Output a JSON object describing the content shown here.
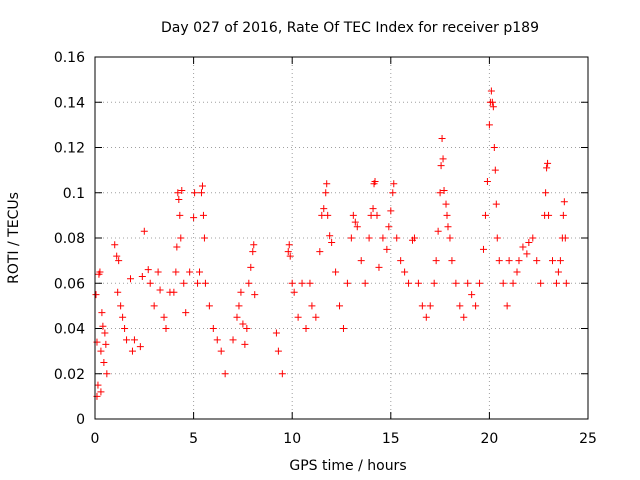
{
  "chart_data": {
    "type": "scatter",
    "title": "Day 027 of 2016, Rate Of TEC Index for receiver p189",
    "xlabel": "GPS time / hours",
    "ylabel": "ROTI / TECUs",
    "xlim": [
      0,
      25
    ],
    "ylim": [
      0,
      0.16
    ],
    "xticks": [
      "0",
      "5",
      "10",
      "15",
      "20",
      "25"
    ],
    "yticks": [
      "0",
      "0.02",
      "0.04",
      "0.06",
      "0.08",
      "0.1",
      "0.12",
      "0.14",
      "0.16"
    ],
    "grid": true,
    "marker": "+",
    "color": "#ff0000",
    "series": [
      {
        "points": [
          [
            0.05,
            0.055
          ],
          [
            0.1,
            0.034
          ],
          [
            0.15,
            0.015
          ],
          [
            0.2,
            0.064
          ],
          [
            0.25,
            0.065
          ],
          [
            0.35,
            0.047
          ],
          [
            0.4,
            0.041
          ],
          [
            0.5,
            0.038
          ],
          [
            0.3,
            0.03
          ],
          [
            0.45,
            0.025
          ],
          [
            0.55,
            0.033
          ],
          [
            0.6,
            0.02
          ],
          [
            0.1,
            0.01
          ],
          [
            0.3,
            0.012
          ],
          [
            1.0,
            0.077
          ],
          [
            1.1,
            0.072
          ],
          [
            1.2,
            0.07
          ],
          [
            1.15,
            0.056
          ],
          [
            1.3,
            0.05
          ],
          [
            1.4,
            0.045
          ],
          [
            1.5,
            0.04
          ],
          [
            1.6,
            0.035
          ],
          [
            1.8,
            0.062
          ],
          [
            1.9,
            0.03
          ],
          [
            2.0,
            0.035
          ],
          [
            2.3,
            0.032
          ],
          [
            2.4,
            0.063
          ],
          [
            2.5,
            0.083
          ],
          [
            2.7,
            0.066
          ],
          [
            2.8,
            0.06
          ],
          [
            3.0,
            0.05
          ],
          [
            3.2,
            0.065
          ],
          [
            3.3,
            0.057
          ],
          [
            3.5,
            0.045
          ],
          [
            3.6,
            0.04
          ],
          [
            3.8,
            0.056
          ],
          [
            4.0,
            0.056
          ],
          [
            4.1,
            0.065
          ],
          [
            4.15,
            0.076
          ],
          [
            4.2,
            0.1
          ],
          [
            4.25,
            0.097
          ],
          [
            4.3,
            0.09
          ],
          [
            4.35,
            0.08
          ],
          [
            4.4,
            0.101
          ],
          [
            4.5,
            0.06
          ],
          [
            4.6,
            0.047
          ],
          [
            4.8,
            0.065
          ],
          [
            5.0,
            0.089
          ],
          [
            5.05,
            0.1
          ],
          [
            5.2,
            0.06
          ],
          [
            5.3,
            0.065
          ],
          [
            5.4,
            0.1
          ],
          [
            5.45,
            0.103
          ],
          [
            5.5,
            0.09
          ],
          [
            5.55,
            0.08
          ],
          [
            5.6,
            0.06
          ],
          [
            5.8,
            0.05
          ],
          [
            6.0,
            0.04
          ],
          [
            6.2,
            0.035
          ],
          [
            6.4,
            0.03
          ],
          [
            6.6,
            0.02
          ],
          [
            7.0,
            0.035
          ],
          [
            7.2,
            0.045
          ],
          [
            7.3,
            0.05
          ],
          [
            7.4,
            0.056
          ],
          [
            7.5,
            0.042
          ],
          [
            7.6,
            0.033
          ],
          [
            7.7,
            0.04
          ],
          [
            7.8,
            0.06
          ],
          [
            7.9,
            0.067
          ],
          [
            8.0,
            0.074
          ],
          [
            8.05,
            0.077
          ],
          [
            8.1,
            0.055
          ],
          [
            9.2,
            0.038
          ],
          [
            9.3,
            0.03
          ],
          [
            9.5,
            0.02
          ],
          [
            9.8,
            0.074
          ],
          [
            9.85,
            0.077
          ],
          [
            9.9,
            0.072
          ],
          [
            10.0,
            0.06
          ],
          [
            10.1,
            0.056
          ],
          [
            10.3,
            0.045
          ],
          [
            10.5,
            0.06
          ],
          [
            10.7,
            0.04
          ],
          [
            10.9,
            0.06
          ],
          [
            11.0,
            0.05
          ],
          [
            11.2,
            0.045
          ],
          [
            11.4,
            0.074
          ],
          [
            11.5,
            0.09
          ],
          [
            11.6,
            0.093
          ],
          [
            11.7,
            0.1
          ],
          [
            11.75,
            0.104
          ],
          [
            11.8,
            0.09
          ],
          [
            11.9,
            0.081
          ],
          [
            12.0,
            0.078
          ],
          [
            12.2,
            0.065
          ],
          [
            12.4,
            0.05
          ],
          [
            12.6,
            0.04
          ],
          [
            12.8,
            0.06
          ],
          [
            13.0,
            0.08
          ],
          [
            13.1,
            0.09
          ],
          [
            13.2,
            0.087
          ],
          [
            13.3,
            0.085
          ],
          [
            13.5,
            0.07
          ],
          [
            13.7,
            0.06
          ],
          [
            13.9,
            0.08
          ],
          [
            14.0,
            0.09
          ],
          [
            14.1,
            0.093
          ],
          [
            14.15,
            0.104
          ],
          [
            14.2,
            0.105
          ],
          [
            14.3,
            0.09
          ],
          [
            14.4,
            0.067
          ],
          [
            14.6,
            0.08
          ],
          [
            14.8,
            0.075
          ],
          [
            14.9,
            0.085
          ],
          [
            15.0,
            0.092
          ],
          [
            15.1,
            0.1
          ],
          [
            15.15,
            0.104
          ],
          [
            15.3,
            0.08
          ],
          [
            15.5,
            0.07
          ],
          [
            15.7,
            0.065
          ],
          [
            15.9,
            0.06
          ],
          [
            16.1,
            0.079
          ],
          [
            16.2,
            0.08
          ],
          [
            16.4,
            0.06
          ],
          [
            16.6,
            0.05
          ],
          [
            16.8,
            0.045
          ],
          [
            17.0,
            0.05
          ],
          [
            17.2,
            0.06
          ],
          [
            17.3,
            0.07
          ],
          [
            17.4,
            0.083
          ],
          [
            17.5,
            0.1
          ],
          [
            17.55,
            0.112
          ],
          [
            17.6,
            0.124
          ],
          [
            17.65,
            0.115
          ],
          [
            17.7,
            0.101
          ],
          [
            17.8,
            0.095
          ],
          [
            17.85,
            0.09
          ],
          [
            17.9,
            0.085
          ],
          [
            18.0,
            0.08
          ],
          [
            18.1,
            0.07
          ],
          [
            18.3,
            0.06
          ],
          [
            18.5,
            0.05
          ],
          [
            18.7,
            0.045
          ],
          [
            18.9,
            0.06
          ],
          [
            19.1,
            0.055
          ],
          [
            19.3,
            0.05
          ],
          [
            19.5,
            0.06
          ],
          [
            19.7,
            0.075
          ],
          [
            19.8,
            0.09
          ],
          [
            19.9,
            0.105
          ],
          [
            20.0,
            0.13
          ],
          [
            20.05,
            0.14
          ],
          [
            20.1,
            0.145
          ],
          [
            20.15,
            0.14
          ],
          [
            20.2,
            0.138
          ],
          [
            20.25,
            0.12
          ],
          [
            20.3,
            0.11
          ],
          [
            20.35,
            0.095
          ],
          [
            20.4,
            0.08
          ],
          [
            20.5,
            0.07
          ],
          [
            20.7,
            0.06
          ],
          [
            20.9,
            0.05
          ],
          [
            21.0,
            0.07
          ],
          [
            21.2,
            0.06
          ],
          [
            21.4,
            0.065
          ],
          [
            21.5,
            0.07
          ],
          [
            21.7,
            0.076
          ],
          [
            21.9,
            0.073
          ],
          [
            22.0,
            0.078
          ],
          [
            22.2,
            0.08
          ],
          [
            22.4,
            0.07
          ],
          [
            22.6,
            0.06
          ],
          [
            22.8,
            0.09
          ],
          [
            22.85,
            0.1
          ],
          [
            22.9,
            0.111
          ],
          [
            22.95,
            0.113
          ],
          [
            23.0,
            0.09
          ],
          [
            23.2,
            0.07
          ],
          [
            23.4,
            0.06
          ],
          [
            23.5,
            0.065
          ],
          [
            23.6,
            0.07
          ],
          [
            23.7,
            0.08
          ],
          [
            23.75,
            0.09
          ],
          [
            23.8,
            0.096
          ],
          [
            23.85,
            0.08
          ],
          [
            23.9,
            0.06
          ]
        ]
      }
    ]
  }
}
